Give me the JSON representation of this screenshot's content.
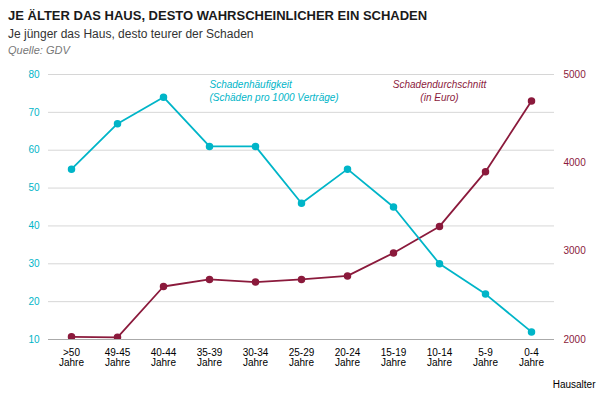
{
  "chart_data": {
    "type": "line",
    "title": "JE ÄLTER DAS HAUS, DESTO WAHRSCHEINLICHER EIN SCHADEN",
    "subtitle": "Je jünger das Haus, desto teurer der Schaden",
    "source": "Quelle: GDV",
    "xlabel": "Hausalter",
    "categories": [
      ">50\nJahre",
      "49-45\nJahre",
      "40-44\nJahre",
      "35-39\nJahre",
      "30-34\nJahre",
      "25-29\nJahre",
      "20-24\nJahre",
      "15-19\nJahre",
      "10-14\nJahre",
      "5-9\nJahre",
      "0-4\nJahre"
    ],
    "series": [
      {
        "name": "Schadendurchschnitt\n(in Euro)",
        "color": "#8B1A3C",
        "axis": "y2",
        "marker": "circle",
        "values": [
          2030,
          2025,
          2600,
          2680,
          2650,
          2680,
          2720,
          2980,
          3280,
          3900,
          4700
        ]
      },
      {
        "name": "Schadenhäufigkeit\n(Schäden pro 1000 Verträge)",
        "color": "#00B5C8",
        "marker": "circle",
        "values": [
          55,
          67,
          74,
          61,
          61,
          46,
          55,
          45,
          30,
          22,
          12
        ]
      }
    ],
    "ylim": [
      10,
      80
    ],
    "yticks": [
      10,
      20,
      30,
      40,
      50,
      60,
      70,
      80
    ],
    "y2lim": [
      2000,
      5000
    ],
    "y2ticks": [
      2000,
      3000,
      4000,
      5000
    ],
    "grid": true
  }
}
